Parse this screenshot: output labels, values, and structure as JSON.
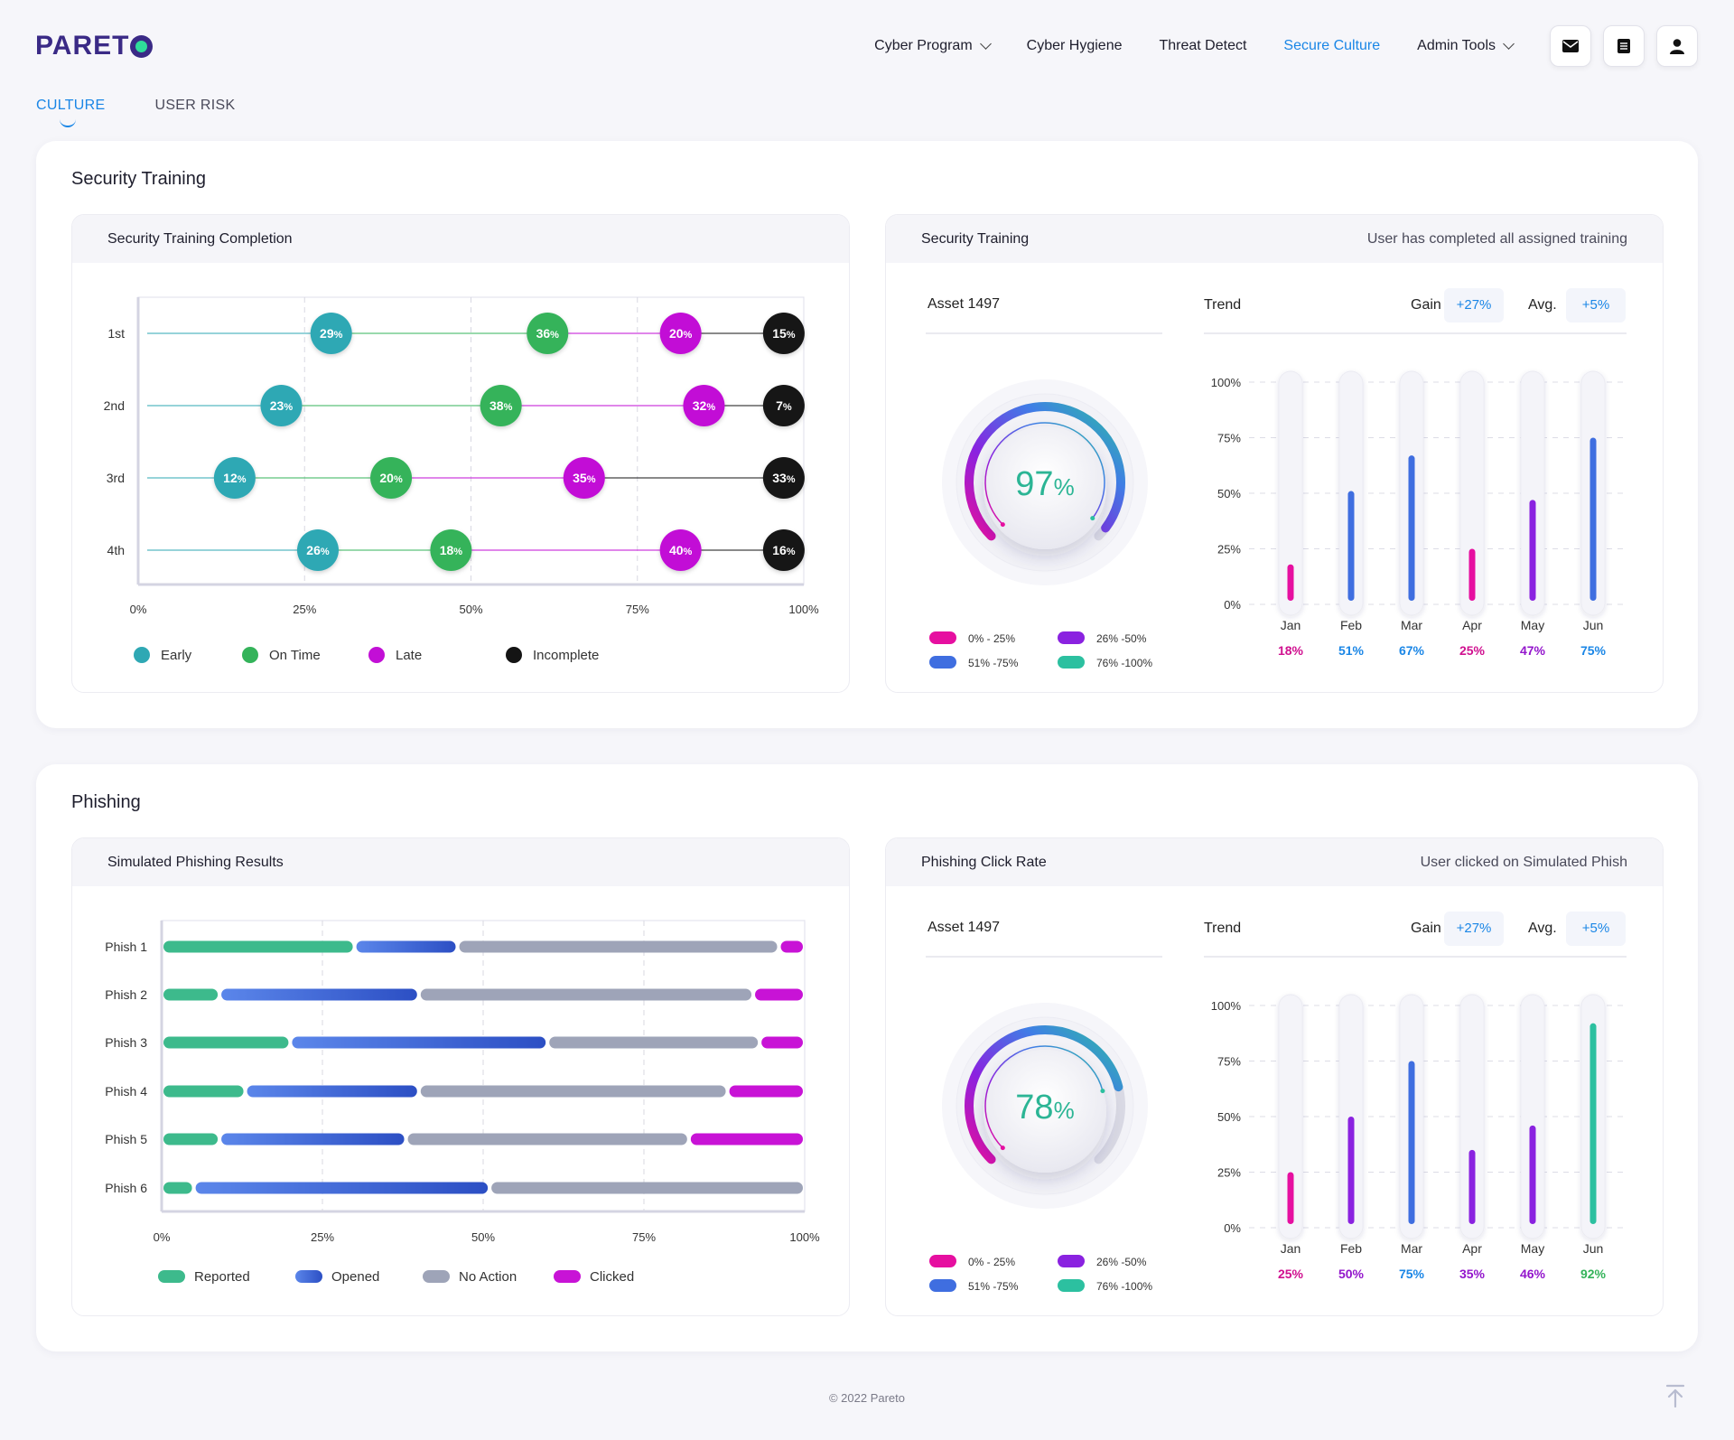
{
  "app": {
    "logo": "PARETO",
    "nav": [
      {
        "label": "Cyber Program",
        "dropdown": true,
        "active": false
      },
      {
        "label": "Cyber Hygiene",
        "dropdown": false,
        "active": false
      },
      {
        "label": "Threat Detect",
        "dropdown": false,
        "active": false
      },
      {
        "label": "Secure Culture",
        "dropdown": false,
        "active": true
      },
      {
        "label": "Admin Tools",
        "dropdown": true,
        "active": false
      }
    ],
    "icons": [
      "mail-icon",
      "document-icon",
      "user-icon"
    ]
  },
  "tabs": [
    {
      "label": "CULTURE",
      "active": true
    },
    {
      "label": "USER RISK",
      "active": false
    }
  ],
  "colors": {
    "early": "#2fa8b4",
    "on_time": "#34b35a",
    "late": "#c20fd6",
    "incomplete": "#141414",
    "reported": "#3dba8c",
    "opened": "#3a66dd",
    "no_action": "#9ea4b8",
    "clicked": "#c813d6",
    "accent": "#1a86e6",
    "pink": "#e60fa0",
    "purple": "#8a22e0",
    "blue": "#3f6ee0",
    "teal": "#2cc0a0"
  },
  "security_training": {
    "title": "Security Training",
    "completion_card": {
      "title": "Security Training Completion",
      "chart_data": {
        "type": "scatter",
        "categories": [
          "1st",
          "2nd",
          "3rd",
          "4th"
        ],
        "series": [
          {
            "name": "Early",
            "x": [
              29,
              21.5,
              14.5,
              27
            ],
            "labels": [
              "29",
              "23",
              "12",
              "26"
            ]
          },
          {
            "name": "On Time",
            "x": [
              61.5,
              54.5,
              38,
              47
            ],
            "labels": [
              "36",
              "38",
              "20",
              "18"
            ]
          },
          {
            "name": "Late",
            "x": [
              81.5,
              85,
              67,
              81.5
            ],
            "labels": [
              "20",
              "32",
              "35",
              "40"
            ]
          },
          {
            "name": "Incomplete",
            "x": [
              97,
              97,
              97,
              97
            ],
            "labels": [
              "15",
              "7",
              "33",
              "16"
            ]
          }
        ],
        "xticks": [
          "0%",
          "25%",
          "50%",
          "75%",
          "100%"
        ],
        "xlim": [
          0,
          100
        ],
        "grid": true,
        "legend": "bottom-left"
      }
    },
    "detail_card": {
      "title": "Security Training",
      "subtitle": "User has completed all assigned training",
      "asset": "Asset 1497",
      "gauge": {
        "value": "97",
        "unit": "%",
        "fraction": 0.97
      },
      "legend": [
        {
          "label": "0% - 25%",
          "color": "#e60fa0"
        },
        {
          "label": "26% -50%",
          "color": "#8a22e0"
        },
        {
          "label": "51% -75%",
          "color": "#3f6ee0"
        },
        {
          "label": "76% -100%",
          "color": "#2cc0a0"
        }
      ],
      "trend": {
        "label": "Trend",
        "gain_label": "Gain",
        "gain_value": "+27%",
        "avg_label": "Avg.",
        "avg_value": "+5%"
      },
      "chart_data": {
        "type": "bar",
        "categories": [
          "Jan",
          "Feb",
          "Mar",
          "Apr",
          "May",
          "Jun"
        ],
        "values": [
          18,
          51,
          67,
          25,
          47,
          75
        ],
        "value_labels": [
          "18%",
          "51%",
          "67%",
          "25%",
          "47%",
          "75%"
        ],
        "yticks": [
          "100%",
          "75%",
          "50%",
          "25%",
          "0%"
        ],
        "ylim": [
          0,
          100
        ]
      }
    }
  },
  "phishing": {
    "title": "Phishing",
    "results_card": {
      "title": "Simulated Phishing Results",
      "chart_data": {
        "type": "bar",
        "orientation": "horizontal-stacked",
        "categories": [
          "Phish 1",
          "Phish 2",
          "Phish 3",
          "Phish 4",
          "Phish 5",
          "Phish 6"
        ],
        "series": [
          {
            "name": "Reported",
            "values": [
              30,
              9,
              20,
              13,
              9,
              5
            ]
          },
          {
            "name": "Opened",
            "values": [
              16,
              31,
              40,
              27,
              29,
              46
            ]
          },
          {
            "name": "No Action",
            "values": [
              50,
              52,
              33,
              48,
              44,
              49
            ]
          },
          {
            "name": "Clicked",
            "values": [
              4,
              8,
              7,
              12,
              18,
              0
            ]
          }
        ],
        "xticks": [
          "0%",
          "25%",
          "50%",
          "75%",
          "100%"
        ],
        "xlim": [
          0,
          100
        ],
        "legend": "bottom-left"
      }
    },
    "detail_card": {
      "title": "Phishing Click Rate",
      "subtitle": "User clicked on Simulated Phish",
      "asset": "Asset 1497",
      "gauge": {
        "value": "78",
        "unit": "%",
        "fraction": 0.78
      },
      "legend": [
        {
          "label": "0% - 25%",
          "color": "#e60fa0"
        },
        {
          "label": "26% -50%",
          "color": "#8a22e0"
        },
        {
          "label": "51% -75%",
          "color": "#3f6ee0"
        },
        {
          "label": "76% -100%",
          "color": "#2cc0a0"
        }
      ],
      "trend": {
        "label": "Trend",
        "gain_label": "Gain",
        "gain_value": "+27%",
        "avg_label": "Avg.",
        "avg_value": "+5%"
      },
      "chart_data": {
        "type": "bar",
        "categories": [
          "Jan",
          "Feb",
          "Mar",
          "Apr",
          "May",
          "Jun"
        ],
        "values": [
          25,
          50,
          75,
          35,
          46,
          92
        ],
        "value_labels": [
          "25%",
          "50%",
          "75%",
          "35%",
          "46%",
          "92%"
        ],
        "yticks": [
          "100%",
          "75%",
          "50%",
          "25%",
          "0%"
        ],
        "ylim": [
          0,
          100
        ]
      }
    }
  },
  "footer": {
    "copyright": "© 2022 Pareto"
  }
}
